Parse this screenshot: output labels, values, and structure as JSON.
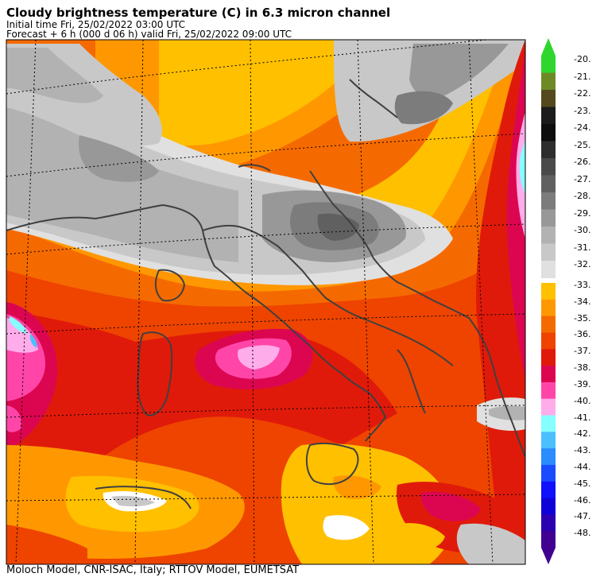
{
  "header": {
    "title": "Cloudy brightness temperature (C) in    6.3 micron channel",
    "initial_time": "Initial time  Fri, 25/02/2022  03:00 UTC",
    "forecast": "Forecast  +   6 h  (000 d 06 h)  valid Fri, 25/02/2022 09:00 UTC"
  },
  "footer": "Moloch Model, CNR-ISAC, Italy; RTTOV Model, EUMETSAT",
  "legend": {
    "upper_labels": [
      "-20.",
      "-21.",
      "-22.",
      "-23.",
      "-24.",
      "-25.",
      "-26.",
      "-27.",
      "-28.",
      "-29.",
      "-30.",
      "-31.",
      "-32."
    ],
    "upper_colors": [
      "#2fd62f",
      "#6e8a27",
      "#54491e",
      "#1c1c1c",
      "#0e0e0e",
      "#2e2e2e",
      "#4a4a4a",
      "#606060",
      "#7c7c7c",
      "#989898",
      "#b2b2b2",
      "#c8c8c8",
      "#e0e0e0"
    ],
    "lower_labels": [
      "-33.",
      "-34.",
      "-35.",
      "-36.",
      "-37.",
      "-38.",
      "-39.",
      "-40.",
      "-41.",
      "-42.",
      "-43.",
      "-44.",
      "-45.",
      "-46.",
      "-47.",
      "-48."
    ],
    "lower_colors": [
      "#ffc000",
      "#ff9800",
      "#f56a00",
      "#ee4400",
      "#e01a0a",
      "#dc0650",
      "#ff46a8",
      "#ffacea",
      "#86ffff",
      "#4ac0ff",
      "#2a8cff",
      "#1a4cff",
      "#1010ff",
      "#1000d8",
      "#2a00b0",
      "#400090"
    ]
  }
}
